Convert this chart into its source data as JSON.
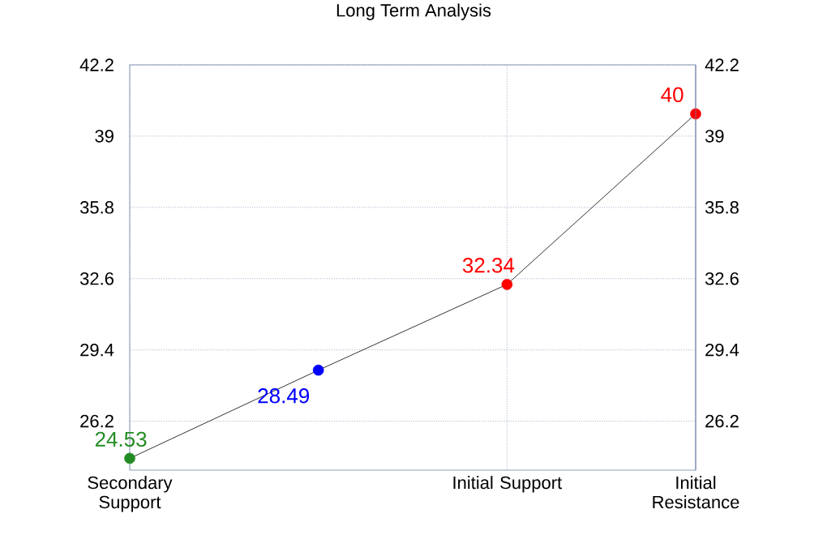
{
  "chart_data": {
    "type": "line",
    "title": "Long Term Analysis",
    "categories": [
      "Secondary Support",
      null,
      "Initial Support",
      "Initial Resistance"
    ],
    "values": [
      24.53,
      28.49,
      32.34,
      40
    ],
    "color": "#000000",
    "colors": [
      "#228b22",
      "#0000ff",
      "#ff0000",
      "#ff0000"
    ],
    "ylim": [
      24,
      42.2
    ],
    "yticks": [
      26.2,
      29.4,
      32.6,
      35.8,
      39,
      42.2
    ],
    "y2lim": [
      24,
      42.2
    ],
    "y2ticks": [
      26.2,
      29.4,
      32.6,
      35.8,
      39,
      42.2
    ],
    "grid": true,
    "marker": "circle",
    "data_labels": true
  }
}
